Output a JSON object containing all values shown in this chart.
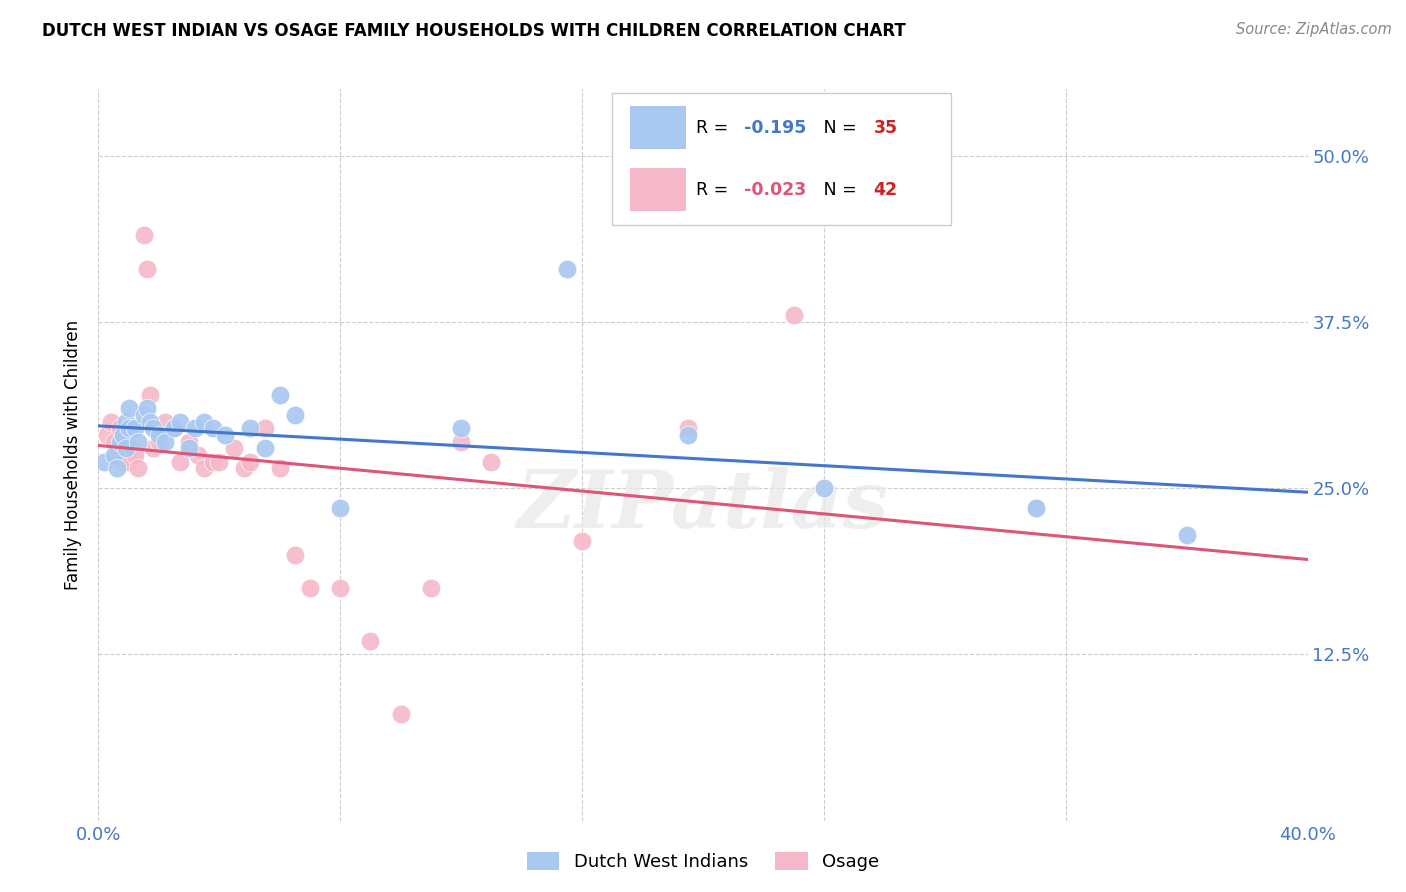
{
  "title": "DUTCH WEST INDIAN VS OSAGE FAMILY HOUSEHOLDS WITH CHILDREN CORRELATION CHART",
  "source": "Source: ZipAtlas.com",
  "ylabel": "Family Households with Children",
  "xlim": [
    0.0,
    0.4
  ],
  "ylim": [
    0.0,
    0.55
  ],
  "xtick_positions": [
    0.0,
    0.08,
    0.16,
    0.24,
    0.32,
    0.4
  ],
  "xticklabels": [
    "0.0%",
    "",
    "",
    "",
    "",
    "40.0%"
  ],
  "ytick_positions": [
    0.0,
    0.125,
    0.25,
    0.375,
    0.5
  ],
  "yticklabels_right": [
    "",
    "12.5%",
    "25.0%",
    "37.5%",
    "50.0%"
  ],
  "blue_R": -0.195,
  "blue_N": 35,
  "pink_R": -0.023,
  "pink_N": 42,
  "blue_color": "#A8C8F0",
  "pink_color": "#F5B8C8",
  "blue_line_color": "#4477CC",
  "pink_line_color": "#DD5577",
  "legend_R_blue": "#4477CC",
  "legend_R_pink": "#DD5577",
  "legend_N_color": "#CC2222",
  "watermark": "ZIPatlas",
  "blue_x": [
    0.002,
    0.005,
    0.006,
    0.007,
    0.008,
    0.009,
    0.009,
    0.01,
    0.01,
    0.012,
    0.013,
    0.015,
    0.016,
    0.017,
    0.018,
    0.02,
    0.022,
    0.025,
    0.027,
    0.03,
    0.032,
    0.035,
    0.038,
    0.042,
    0.05,
    0.055,
    0.06,
    0.065,
    0.08,
    0.12,
    0.155,
    0.195,
    0.24,
    0.31,
    0.36
  ],
  "blue_y": [
    0.27,
    0.275,
    0.265,
    0.285,
    0.29,
    0.28,
    0.3,
    0.295,
    0.31,
    0.295,
    0.285,
    0.305,
    0.31,
    0.3,
    0.295,
    0.29,
    0.285,
    0.295,
    0.3,
    0.28,
    0.295,
    0.3,
    0.295,
    0.29,
    0.295,
    0.28,
    0.32,
    0.305,
    0.235,
    0.295,
    0.415,
    0.29,
    0.25,
    0.235,
    0.215
  ],
  "pink_x": [
    0.003,
    0.004,
    0.005,
    0.006,
    0.007,
    0.008,
    0.009,
    0.01,
    0.01,
    0.011,
    0.012,
    0.013,
    0.015,
    0.016,
    0.017,
    0.018,
    0.02,
    0.022,
    0.025,
    0.027,
    0.03,
    0.033,
    0.035,
    0.038,
    0.04,
    0.045,
    0.048,
    0.05,
    0.055,
    0.06,
    0.065,
    0.07,
    0.08,
    0.09,
    0.1,
    0.11,
    0.12,
    0.13,
    0.16,
    0.195,
    0.23,
    0.31
  ],
  "pink_y": [
    0.29,
    0.3,
    0.285,
    0.275,
    0.295,
    0.27,
    0.285,
    0.27,
    0.295,
    0.28,
    0.275,
    0.265,
    0.44,
    0.415,
    0.32,
    0.28,
    0.285,
    0.3,
    0.295,
    0.27,
    0.285,
    0.275,
    0.265,
    0.27,
    0.27,
    0.28,
    0.265,
    0.27,
    0.295,
    0.265,
    0.2,
    0.175,
    0.175,
    0.135,
    0.08,
    0.175,
    0.285,
    0.27,
    0.21,
    0.295,
    0.38,
    0.235
  ]
}
